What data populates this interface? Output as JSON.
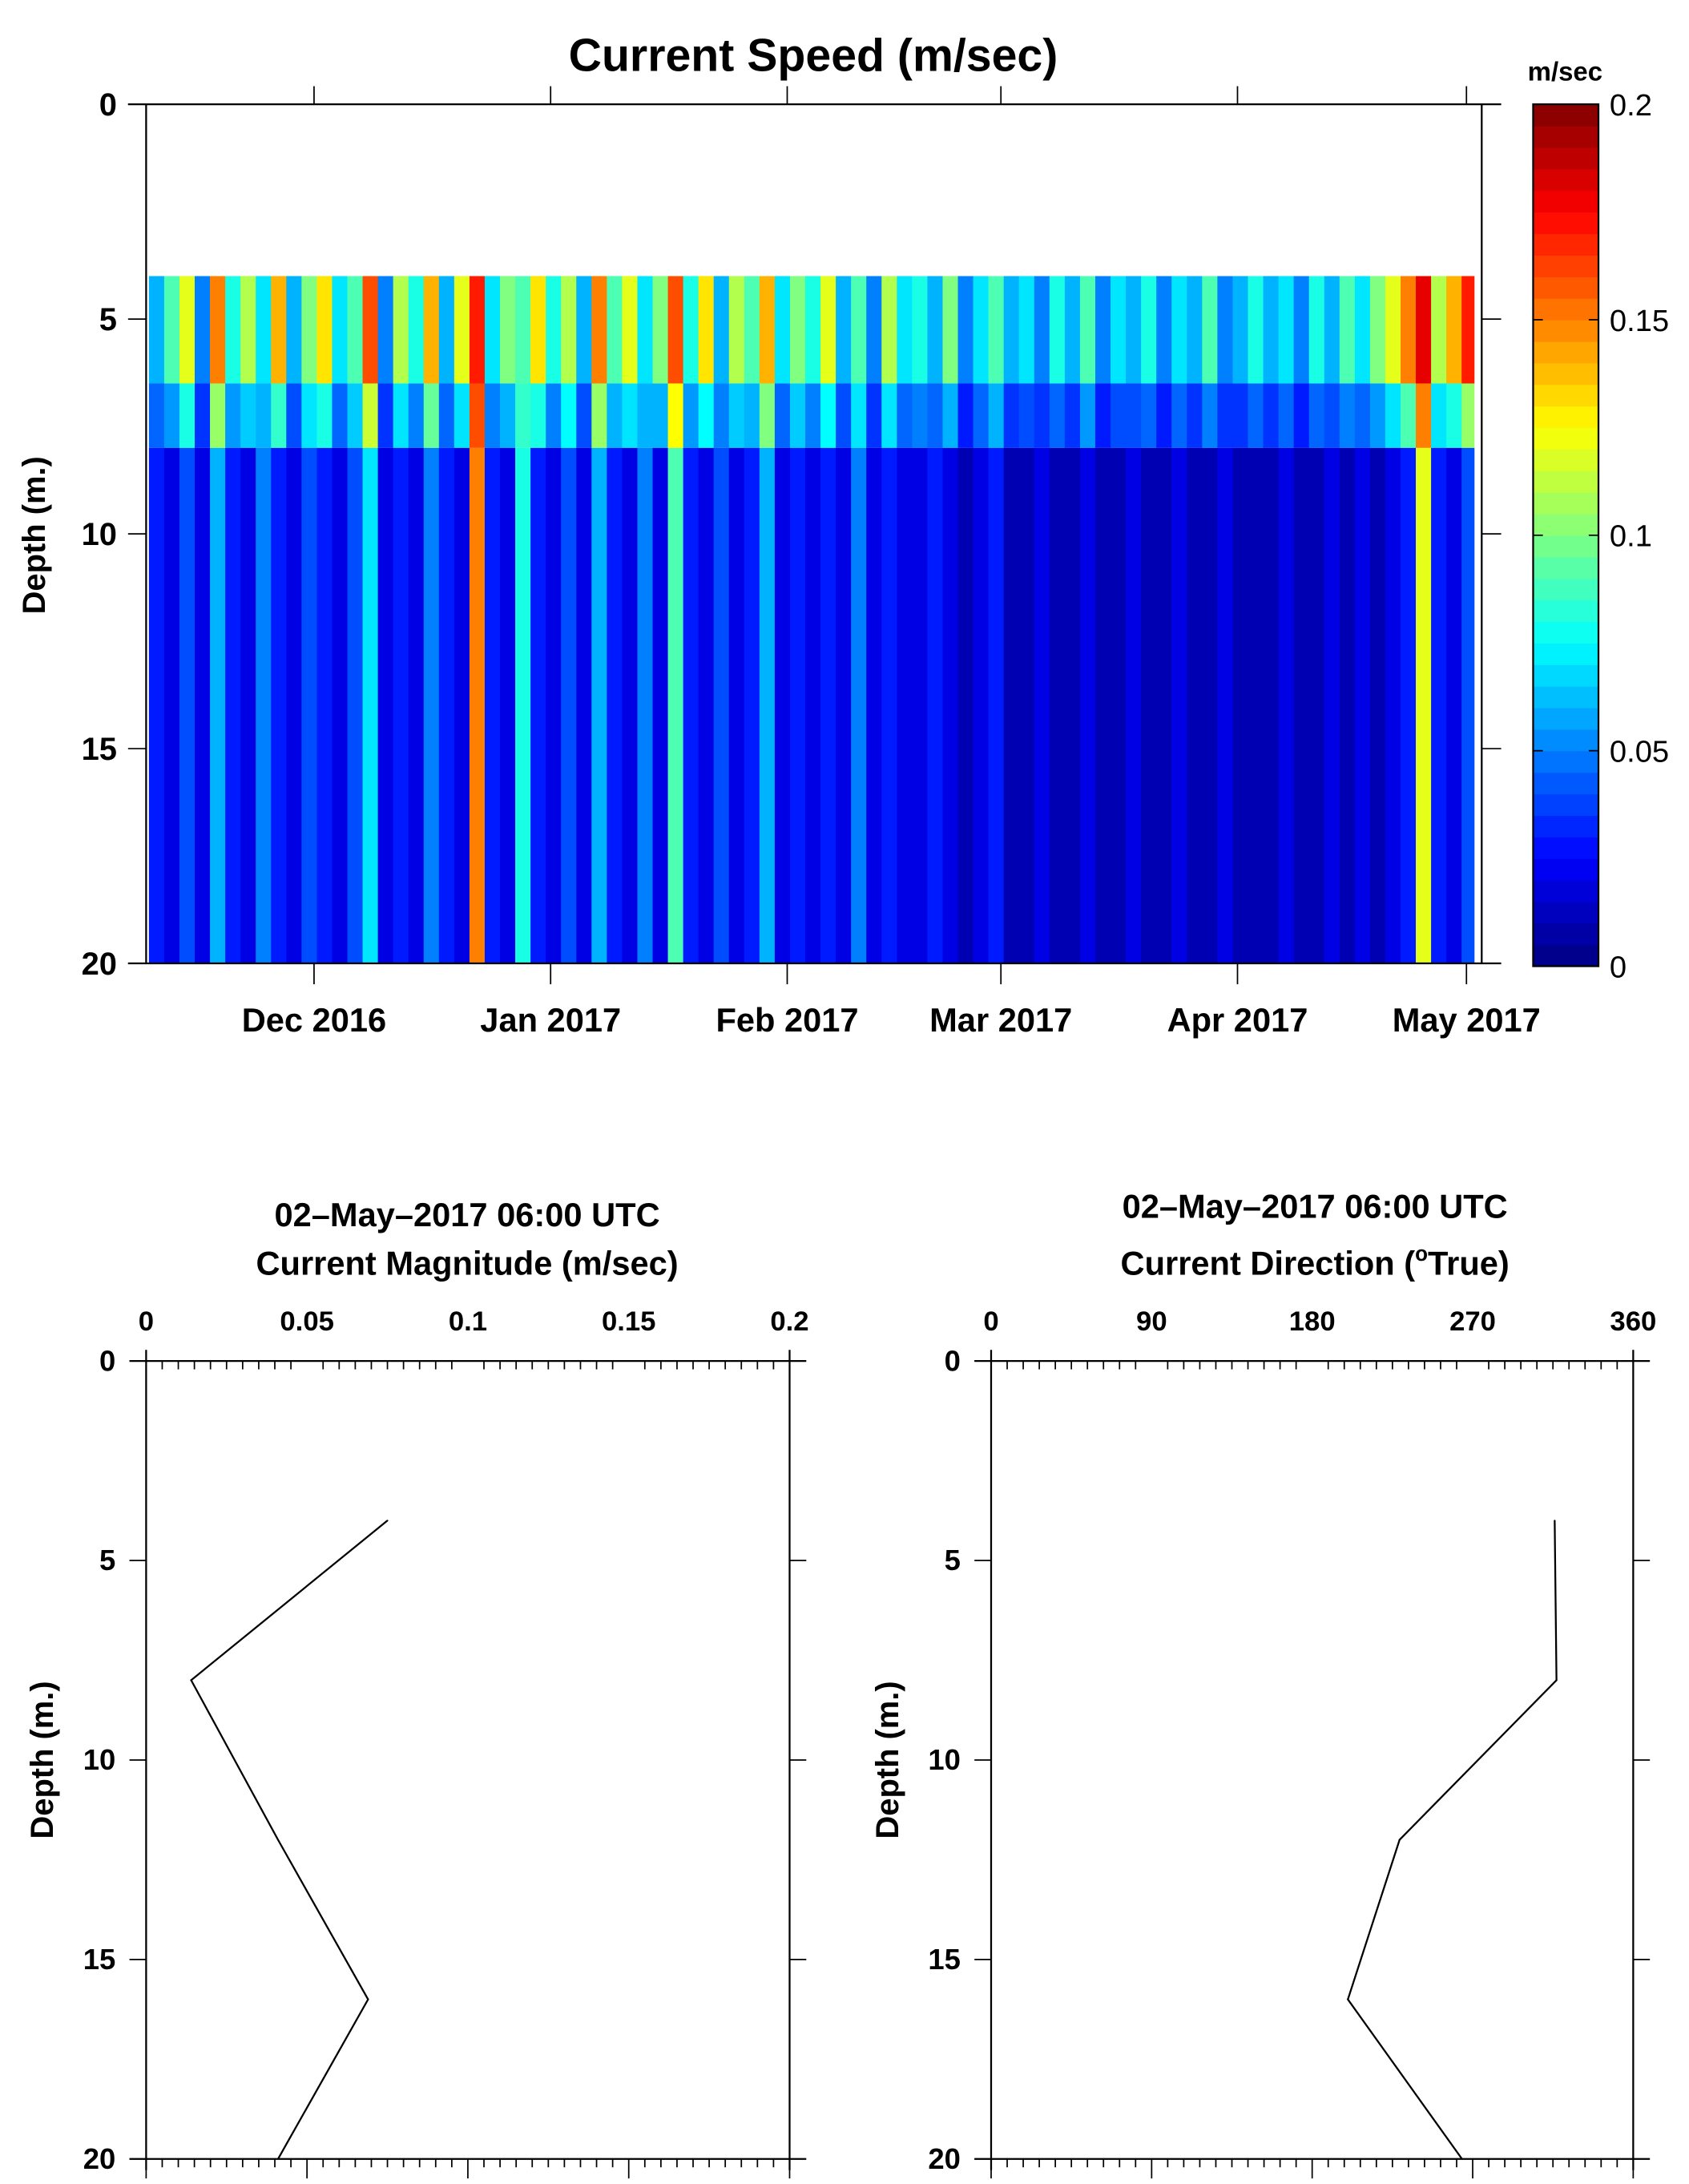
{
  "chart_data": [
    {
      "type": "heatmap",
      "title": "Current Speed (m/sec)",
      "ylabel": "Depth (m.)",
      "xlabel": "",
      "ylim": [
        20,
        0
      ],
      "yticks": [
        "0",
        "5",
        "10",
        "15",
        "20"
      ],
      "xticks": [
        "Dec 2016",
        "Jan 2017",
        "Feb 2017",
        "Mar 2017",
        "Apr 2017",
        "May 2017"
      ],
      "xtick_dates": [
        "2016-12-01",
        "2017-01-01",
        "2017-02-01",
        "2017-03-01",
        "2017-04-01",
        "2017-05-01"
      ],
      "xlim": [
        "2016-11-09",
        "2017-05-03"
      ],
      "data_depth_range": [
        4,
        20
      ],
      "colorbar": {
        "label": "m/sec",
        "colormap": "jet",
        "range": [
          0,
          0.2
        ],
        "ticks": [
          "0",
          "0.05",
          "0.1",
          "0.15",
          "0.2"
        ]
      },
      "column_start": "2016-11-09",
      "column_step_days": 2,
      "layers": [
        {
          "depth": [
            4,
            6.5
          ],
          "values": [
            0.06,
            0.09,
            0.12,
            0.05,
            0.15,
            0.08,
            0.11,
            0.07,
            0.14,
            0.06,
            0.1,
            0.13,
            0.07,
            0.09,
            0.16,
            0.05,
            0.11,
            0.08,
            0.14,
            0.06,
            0.12,
            0.17,
            0.07,
            0.1,
            0.09,
            0.13,
            0.08,
            0.11,
            0.06,
            0.15,
            0.09,
            0.12,
            0.07,
            0.1,
            0.16,
            0.08,
            0.13,
            0.06,
            0.11,
            0.09,
            0.14,
            0.07,
            0.1,
            0.08,
            0.12,
            0.06,
            0.09,
            0.05,
            0.11,
            0.07,
            0.08,
            0.06,
            0.1,
            0.05,
            0.07,
            0.09,
            0.06,
            0.07,
            0.05,
            0.08,
            0.06,
            0.09,
            0.05,
            0.07,
            0.06,
            0.08,
            0.05,
            0.07,
            0.06,
            0.09,
            0.05,
            0.06,
            0.08,
            0.06,
            0.07,
            0.05,
            0.08,
            0.06,
            0.09,
            0.07,
            0.1,
            0.12,
            0.15,
            0.18,
            0.11,
            0.14,
            0.17,
            0.13
          ]
        },
        {
          "depth": [
            8,
            20
          ],
          "values": [
            0.03,
            0.02,
            0.04,
            0.02,
            0.06,
            0.03,
            0.02,
            0.05,
            0.03,
            0.02,
            0.04,
            0.03,
            0.02,
            0.04,
            0.07,
            0.02,
            0.03,
            0.02,
            0.05,
            0.03,
            0.02,
            0.15,
            0.03,
            0.02,
            0.08,
            0.03,
            0.02,
            0.04,
            0.02,
            0.06,
            0.03,
            0.02,
            0.05,
            0.02,
            0.09,
            0.03,
            0.02,
            0.04,
            0.02,
            0.03,
            0.06,
            0.02,
            0.03,
            0.02,
            0.03,
            0.02,
            0.05,
            0.02,
            0.03,
            0.02,
            0.02,
            0.03,
            0.02,
            0.01,
            0.02,
            0.03,
            0.01,
            0.01,
            0.02,
            0.01,
            0.01,
            0.02,
            0.01,
            0.01,
            0.02,
            0.01,
            0.01,
            0.02,
            0.01,
            0.01,
            0.02,
            0.01,
            0.01,
            0.01,
            0.02,
            0.01,
            0.01,
            0.02,
            0.01,
            0.02,
            0.01,
            0.02,
            0.03,
            0.12,
            0.03,
            0.02,
            0.04,
            0.02
          ]
        }
      ]
    },
    {
      "type": "line",
      "title": "02–May–2017 06:00 UTC",
      "subtitle": "Current Magnitude (m/sec)",
      "ylabel": "Depth (m.)",
      "xlim": [
        0,
        0.2
      ],
      "ylim": [
        20,
        0
      ],
      "xticks": [
        "0",
        "0.05",
        "0.1",
        "0.15",
        "0.2"
      ],
      "yticks": [
        "0",
        "5",
        "10",
        "15",
        "20"
      ],
      "depth": [
        4,
        8,
        12,
        16,
        20
      ],
      "x": [
        0.075,
        0.014,
        0.041,
        0.069,
        0.041
      ]
    },
    {
      "type": "line",
      "title": "02–May–2017 06:00 UTC",
      "subtitle_pre": "Current Direction (",
      "subtitle_sup": "o",
      "subtitle_post": "True)",
      "ylabel": "Depth (m.)",
      "xlim": [
        0,
        360
      ],
      "ylim": [
        20,
        0
      ],
      "xticks": [
        "0",
        "90",
        "180",
        "270",
        "360"
      ],
      "yticks": [
        "0",
        "5",
        "10",
        "15",
        "20"
      ],
      "depth": [
        4,
        8,
        12,
        16,
        20
      ],
      "x": [
        316,
        317,
        229,
        200,
        264
      ]
    }
  ]
}
